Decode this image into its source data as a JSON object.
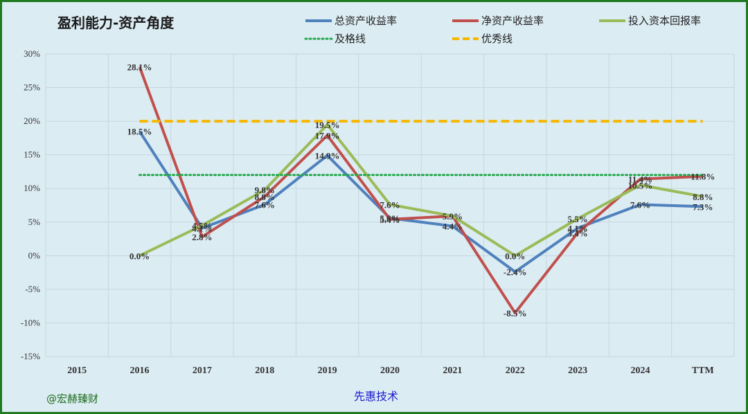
{
  "chart_data": {
    "type": "line",
    "title": "盈利能力-资产角度",
    "categories": [
      "2015",
      "2016",
      "2017",
      "2018",
      "2019",
      "2020",
      "2021",
      "2022",
      "2023",
      "2024",
      "TTM"
    ],
    "ylim": [
      -15,
      30
    ],
    "yticks": [
      "30%",
      "25%",
      "20%",
      "15%",
      "10%",
      "5%",
      "0%",
      "-5%",
      "-10%",
      "-15%"
    ],
    "grid": true,
    "legend_position": "top-right",
    "series": [
      {
        "name": "总资产收益率",
        "color": "#4f81bd",
        "values": [
          null,
          18.5,
          4.1,
          7.6,
          14.9,
          5.6,
          4.4,
          -2.4,
          4.1,
          7.6,
          7.3
        ],
        "labels": [
          "",
          "18.5%",
          "4.1%",
          "7.6%",
          "14.9%",
          "5.6%",
          "4.4%",
          "-2.4%",
          "4.1%",
          "7.6%",
          "7.3%"
        ]
      },
      {
        "name": "净资产收益率",
        "color": "#c0504d",
        "values": [
          null,
          28.1,
          2.8,
          8.8,
          17.9,
          5.4,
          5.9,
          -8.5,
          3.4,
          11.4,
          11.8
        ],
        "labels": [
          "",
          "28.1%",
          "2.8%",
          "8.8%",
          "17.9%",
          "5.4%",
          "",
          "-8.5%",
          "3.4%",
          "11.4%",
          "11.8%"
        ]
      },
      {
        "name": "投入资本回报率",
        "color": "#9bbb59",
        "values": [
          null,
          0.0,
          4.5,
          9.8,
          19.5,
          7.6,
          5.9,
          0.0,
          5.5,
          10.5,
          8.8
        ],
        "labels": [
          "",
          "0.0%",
          "4.5%",
          "9.8%",
          "19.5%",
          "7.6%",
          "5.9%",
          "0.0%",
          "5.5%",
          "10.5%",
          "8.8%"
        ]
      },
      {
        "name": "及格线",
        "color": "#22a84a",
        "style": "dotted",
        "values": [
          null,
          12,
          12,
          12,
          12,
          12,
          12,
          12,
          12,
          12,
          12
        ]
      },
      {
        "name": "优秀线",
        "color": "#f5b800",
        "style": "dashed",
        "values": [
          null,
          20,
          20,
          20,
          20,
          20,
          20,
          20,
          20,
          20,
          20
        ]
      }
    ]
  },
  "footer": {
    "left_text": "@宏赫臻财",
    "center_text": "先惠技术"
  }
}
